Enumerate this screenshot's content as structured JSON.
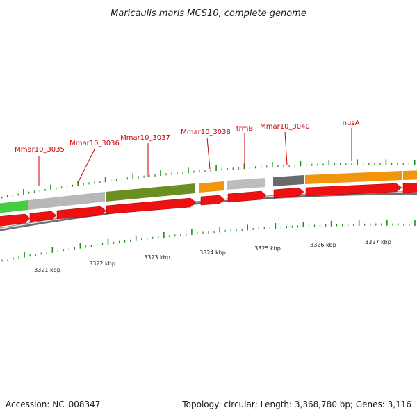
{
  "title": "Maricaulis maris MCS10, complete genome",
  "footer": {
    "accession": "Accession: NC_008347",
    "summary": "Topology: circular; Length: 3,368,780 bp; Genes: 3,116"
  },
  "colors": {
    "forward_gene": "#ee1111",
    "tick": "#1a8f1a",
    "label": "#cc0000",
    "backbone": "#888888"
  },
  "gene_labels": [
    {
      "name": "Mmar10_3035"
    },
    {
      "name": "Mmar10_3036"
    },
    {
      "name": "Mmar10_3037"
    },
    {
      "name": "Mmar10_3038"
    },
    {
      "name": "trmB"
    },
    {
      "name": "Mmar10_3040"
    },
    {
      "name": "nusA"
    }
  ],
  "kbp_labels": [
    "3321 kbp",
    "3322 kbp",
    "3323 kbp",
    "3324 kbp",
    "3325 kbp",
    "3326 kbp",
    "3327 kbp"
  ]
}
